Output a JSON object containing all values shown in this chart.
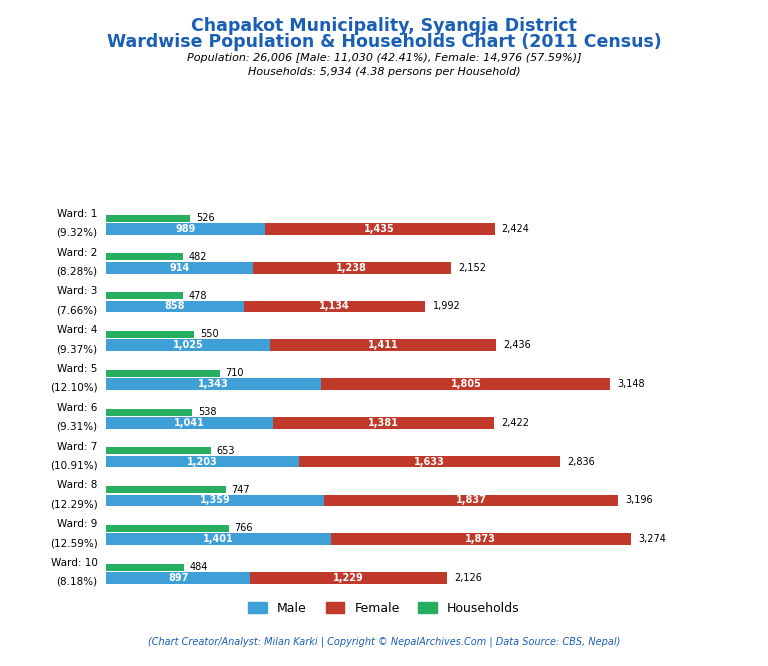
{
  "title_line1": "Chapakot Municipality, Syangja District",
  "title_line2": "Wardwise Population & Households Chart (2011 Census)",
  "subtitle_line1": "Population: 26,006 [Male: 11,030 (42.41%), Female: 14,976 (57.59%)]",
  "subtitle_line2": "Households: 5,934 (4.38 persons per Household)",
  "footer": "(Chart Creator/Analyst: Milan Karki | Copyright © NepalArchives.Com | Data Source: CBS, Nepal)",
  "wards": [
    {
      "label1": "Ward: 1",
      "label2": "(9.32%)",
      "male": 989,
      "female": 1435,
      "households": 526,
      "total": 2424
    },
    {
      "label1": "Ward: 2",
      "label2": "(8.28%)",
      "male": 914,
      "female": 1238,
      "households": 482,
      "total": 2152
    },
    {
      "label1": "Ward: 3",
      "label2": "(7.66%)",
      "male": 858,
      "female": 1134,
      "households": 478,
      "total": 1992
    },
    {
      "label1": "Ward: 4",
      "label2": "(9.37%)",
      "male": 1025,
      "female": 1411,
      "households": 550,
      "total": 2436
    },
    {
      "label1": "Ward: 5",
      "label2": "(12.10%)",
      "male": 1343,
      "female": 1805,
      "households": 710,
      "total": 3148
    },
    {
      "label1": "Ward: 6",
      "label2": "(9.31%)",
      "male": 1041,
      "female": 1381,
      "households": 538,
      "total": 2422
    },
    {
      "label1": "Ward: 7",
      "label2": "(10.91%)",
      "male": 1203,
      "female": 1633,
      "households": 653,
      "total": 2836
    },
    {
      "label1": "Ward: 8",
      "label2": "(12.29%)",
      "male": 1359,
      "female": 1837,
      "households": 747,
      "total": 3196
    },
    {
      "label1": "Ward: 9",
      "label2": "(12.59%)",
      "male": 1401,
      "female": 1873,
      "households": 766,
      "total": 3274
    },
    {
      "label1": "Ward: 10",
      "label2": "(8.18%)",
      "male": 897,
      "female": 1229,
      "households": 484,
      "total": 2126
    }
  ],
  "color_male": "#3fa0d8",
  "color_female": "#c0392b",
  "color_households": "#27ae60",
  "title_color": "#1a5fb4",
  "subtitle_color": "#000000",
  "footer_color": "#1a5fb4",
  "background_color": "#FFFFFF"
}
